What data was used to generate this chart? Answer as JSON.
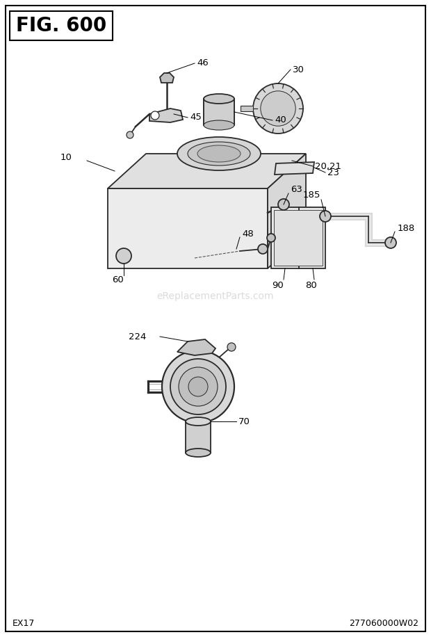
{
  "title": "FIG. 600",
  "bottom_left": "EX17",
  "bottom_right": "277060000W02",
  "watermark": "eReplacementParts.com",
  "bg_color": "#ffffff",
  "lc": "#2a2a2a",
  "lw_main": 1.3,
  "lw_thin": 0.8,
  "label_fontsize": 9.5,
  "title_fontsize": 20
}
